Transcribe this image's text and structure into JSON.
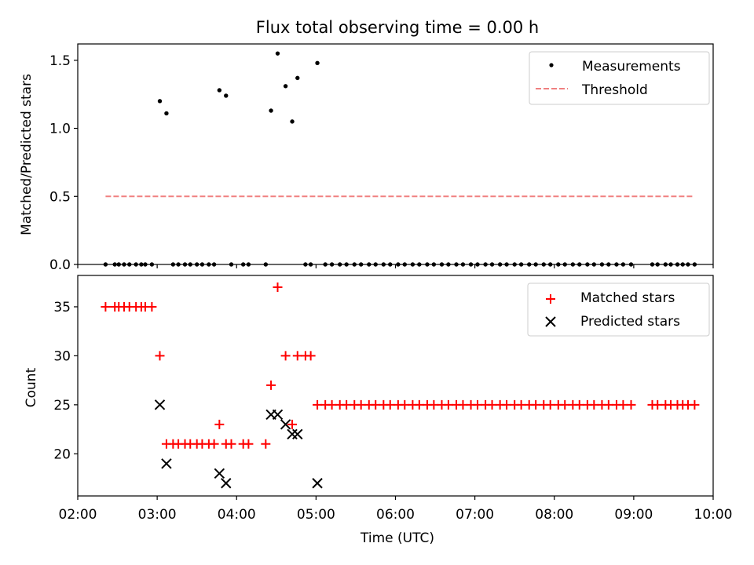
{
  "chart_data": [
    {
      "type": "scatter",
      "title": "Flux total observing time = 0.00 h",
      "xlabel": "",
      "ylabel": "Matched/Predicted stars",
      "xlim": [
        "02:00",
        "10:00"
      ],
      "ylim": [
        0,
        1.62
      ],
      "yticks": [
        "0.0",
        "0.5",
        "1.0",
        "1.5"
      ],
      "ytick_values": [
        0,
        0.5,
        1.0,
        1.5
      ],
      "legend": {
        "location": "upper right",
        "entries": [
          "Measurements",
          "Threshold"
        ]
      },
      "series": [
        {
          "name": "Measurements",
          "marker": "dot",
          "color": "#000000",
          "points": [
            [
              "02:21",
              0
            ],
            [
              "02:28",
              0
            ],
            [
              "02:31",
              0
            ],
            [
              "02:35",
              0
            ],
            [
              "02:39",
              0
            ],
            [
              "02:44",
              0
            ],
            [
              "02:48",
              0
            ],
            [
              "02:51",
              0
            ],
            [
              "02:56",
              0
            ],
            [
              "03:02",
              1.2
            ],
            [
              "03:07",
              1.11
            ],
            [
              "03:12",
              0
            ],
            [
              "03:16",
              0
            ],
            [
              "03:21",
              0
            ],
            [
              "03:25",
              0
            ],
            [
              "03:30",
              0
            ],
            [
              "03:34",
              0
            ],
            [
              "03:39",
              0
            ],
            [
              "03:43",
              0
            ],
            [
              "03:47",
              1.28
            ],
            [
              "03:52",
              1.24
            ],
            [
              "03:56",
              0
            ],
            [
              "04:05",
              0
            ],
            [
              "04:09",
              0
            ],
            [
              "04:22",
              0
            ],
            [
              "04:26",
              1.13
            ],
            [
              "04:31",
              1.55
            ],
            [
              "04:37",
              1.31
            ],
            [
              "04:42",
              1.05
            ],
            [
              "04:46",
              1.37
            ],
            [
              "04:52",
              0
            ],
            [
              "04:56",
              0
            ],
            [
              "05:01",
              1.48
            ],
            [
              "05:07",
              0
            ],
            [
              "05:12",
              0
            ],
            [
              "05:18",
              0
            ],
            [
              "05:23",
              0
            ],
            [
              "05:29",
              0
            ],
            [
              "05:34",
              0
            ],
            [
              "05:40",
              0
            ],
            [
              "05:45",
              0
            ],
            [
              "05:51",
              0
            ],
            [
              "05:56",
              0
            ],
            [
              "06:02",
              0
            ],
            [
              "06:07",
              0
            ],
            [
              "06:13",
              0
            ],
            [
              "06:18",
              0
            ],
            [
              "06:24",
              0
            ],
            [
              "06:29",
              0
            ],
            [
              "06:35",
              0
            ],
            [
              "06:40",
              0
            ],
            [
              "06:46",
              0
            ],
            [
              "06:51",
              0
            ],
            [
              "06:57",
              0
            ],
            [
              "07:02",
              0
            ],
            [
              "07:08",
              0
            ],
            [
              "07:13",
              0
            ],
            [
              "07:19",
              0
            ],
            [
              "07:24",
              0
            ],
            [
              "07:30",
              0
            ],
            [
              "07:35",
              0
            ],
            [
              "07:41",
              0
            ],
            [
              "07:46",
              0
            ],
            [
              "07:52",
              0
            ],
            [
              "07:57",
              0
            ],
            [
              "08:03",
              0
            ],
            [
              "08:08",
              0
            ],
            [
              "08:14",
              0
            ],
            [
              "08:19",
              0
            ],
            [
              "08:25",
              0
            ],
            [
              "08:30",
              0
            ],
            [
              "08:36",
              0
            ],
            [
              "08:41",
              0
            ],
            [
              "08:47",
              0
            ],
            [
              "08:52",
              0
            ],
            [
              "08:58",
              0
            ],
            [
              "09:14",
              0
            ],
            [
              "09:18",
              0
            ],
            [
              "09:24",
              0
            ],
            [
              "09:28",
              0
            ],
            [
              "09:33",
              0
            ],
            [
              "09:37",
              0
            ],
            [
              "09:41",
              0
            ],
            [
              "09:46",
              0
            ]
          ]
        },
        {
          "name": "Threshold",
          "style": "dashed",
          "color": "#f08080",
          "points": [
            [
              "02:21",
              0.5
            ],
            [
              "09:46",
              0.5
            ]
          ]
        }
      ]
    },
    {
      "type": "scatter",
      "title": "",
      "xlabel": "Time (UTC)",
      "ylabel": "Count",
      "xlim": [
        "02:00",
        "10:00"
      ],
      "ylim": [
        15.7,
        38.2
      ],
      "xticks": [
        "02:00",
        "03:00",
        "04:00",
        "05:00",
        "06:00",
        "07:00",
        "08:00",
        "09:00",
        "10:00"
      ],
      "yticks": [
        "20",
        "25",
        "30",
        "35"
      ],
      "ytick_values": [
        20,
        25,
        30,
        35
      ],
      "legend": {
        "location": "upper right",
        "entries": [
          "Matched stars",
          "Predicted stars"
        ]
      },
      "series": [
        {
          "name": "Matched stars",
          "marker": "plus",
          "color": "#ff0000",
          "points": [
            [
              "02:21",
              35
            ],
            [
              "02:28",
              35
            ],
            [
              "02:31",
              35
            ],
            [
              "02:35",
              35
            ],
            [
              "02:39",
              35
            ],
            [
              "02:44",
              35
            ],
            [
              "02:48",
              35
            ],
            [
              "02:51",
              35
            ],
            [
              "02:56",
              35
            ],
            [
              "03:02",
              30
            ],
            [
              "03:07",
              21
            ],
            [
              "03:12",
              21
            ],
            [
              "03:16",
              21
            ],
            [
              "03:21",
              21
            ],
            [
              "03:25",
              21
            ],
            [
              "03:30",
              21
            ],
            [
              "03:34",
              21
            ],
            [
              "03:39",
              21
            ],
            [
              "03:43",
              21
            ],
            [
              "03:47",
              23
            ],
            [
              "03:52",
              21
            ],
            [
              "03:56",
              21
            ],
            [
              "04:05",
              21
            ],
            [
              "04:09",
              21
            ],
            [
              "04:22",
              21
            ],
            [
              "04:26",
              27
            ],
            [
              "04:31",
              37
            ],
            [
              "04:37",
              30
            ],
            [
              "04:42",
              23
            ],
            [
              "04:46",
              30
            ],
            [
              "04:52",
              30
            ],
            [
              "04:56",
              30
            ],
            [
              "05:01",
              25
            ],
            [
              "05:07",
              25
            ],
            [
              "05:12",
              25
            ],
            [
              "05:18",
              25
            ],
            [
              "05:23",
              25
            ],
            [
              "05:29",
              25
            ],
            [
              "05:34",
              25
            ],
            [
              "05:40",
              25
            ],
            [
              "05:45",
              25
            ],
            [
              "05:51",
              25
            ],
            [
              "05:56",
              25
            ],
            [
              "06:02",
              25
            ],
            [
              "06:07",
              25
            ],
            [
              "06:13",
              25
            ],
            [
              "06:18",
              25
            ],
            [
              "06:24",
              25
            ],
            [
              "06:29",
              25
            ],
            [
              "06:35",
              25
            ],
            [
              "06:40",
              25
            ],
            [
              "06:46",
              25
            ],
            [
              "06:51",
              25
            ],
            [
              "06:57",
              25
            ],
            [
              "07:02",
              25
            ],
            [
              "07:08",
              25
            ],
            [
              "07:13",
              25
            ],
            [
              "07:19",
              25
            ],
            [
              "07:24",
              25
            ],
            [
              "07:30",
              25
            ],
            [
              "07:35",
              25
            ],
            [
              "07:41",
              25
            ],
            [
              "07:46",
              25
            ],
            [
              "07:52",
              25
            ],
            [
              "07:57",
              25
            ],
            [
              "08:03",
              25
            ],
            [
              "08:08",
              25
            ],
            [
              "08:14",
              25
            ],
            [
              "08:19",
              25
            ],
            [
              "08:25",
              25
            ],
            [
              "08:30",
              25
            ],
            [
              "08:36",
              25
            ],
            [
              "08:41",
              25
            ],
            [
              "08:47",
              25
            ],
            [
              "08:52",
              25
            ],
            [
              "08:58",
              25
            ],
            [
              "09:14",
              25
            ],
            [
              "09:18",
              25
            ],
            [
              "09:24",
              25
            ],
            [
              "09:28",
              25
            ],
            [
              "09:33",
              25
            ],
            [
              "09:37",
              25
            ],
            [
              "09:41",
              25
            ],
            [
              "09:46",
              25
            ]
          ]
        },
        {
          "name": "Predicted stars",
          "marker": "x",
          "color": "#000000",
          "points": [
            [
              "03:02",
              25
            ],
            [
              "03:07",
              19
            ],
            [
              "03:47",
              18
            ],
            [
              "03:52",
              17
            ],
            [
              "04:26",
              24
            ],
            [
              "04:31",
              24
            ],
            [
              "04:37",
              23
            ],
            [
              "04:42",
              22
            ],
            [
              "04:46",
              22
            ],
            [
              "05:01",
              17
            ]
          ]
        }
      ]
    }
  ]
}
